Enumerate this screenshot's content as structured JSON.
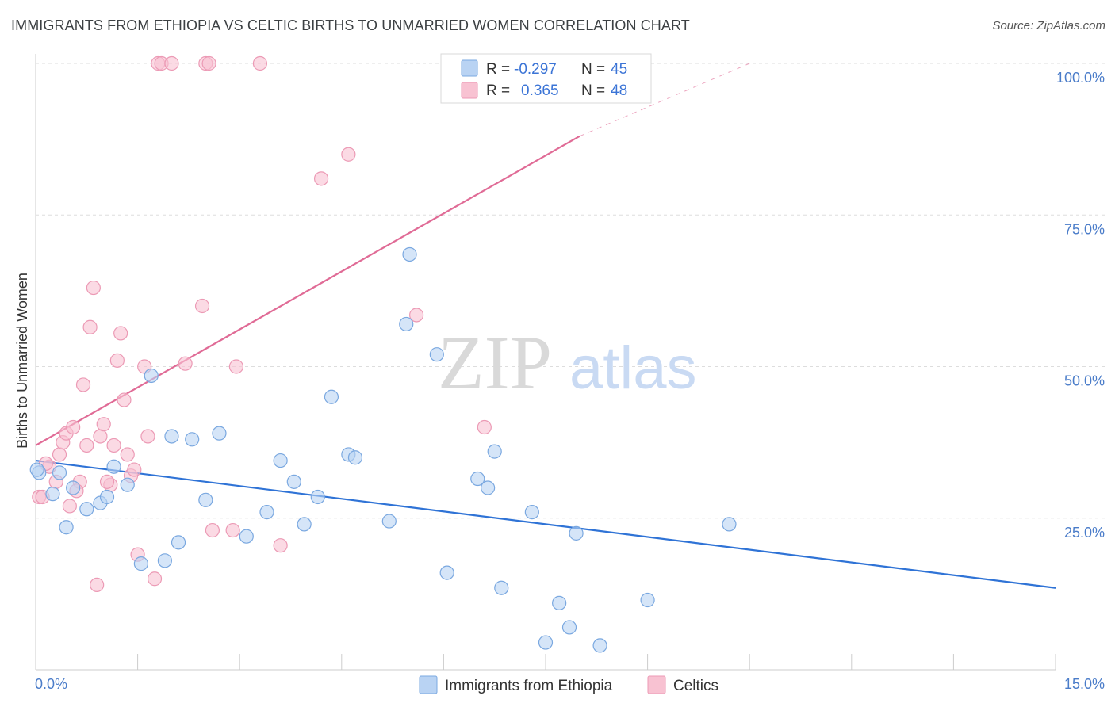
{
  "title": "IMMIGRANTS FROM ETHIOPIA VS CELTIC BIRTHS TO UNMARRIED WOMEN CORRELATION CHART",
  "source": "Source: ZipAtlas.com",
  "watermark": {
    "zip": "ZIP",
    "atlas": "atlas"
  },
  "legend": {
    "series1": {
      "r_label": "R =",
      "r_value": "-0.297",
      "n_label": "N =",
      "n_value": "45"
    },
    "series2": {
      "r_label": "R =",
      "r_value": "0.365",
      "n_label": "N =",
      "n_value": "48"
    }
  },
  "bottom_legend": {
    "series1": "Immigrants from Ethiopia",
    "series2": "Celtics"
  },
  "colors": {
    "series1_fill": "#b9d3f3",
    "series1_stroke": "#7aa8e0",
    "series1_line": "#2f73d6",
    "series2_fill": "#f8c2d2",
    "series2_stroke": "#ec9ab5",
    "series2_line": "#e06b96",
    "grid": "#dddddd",
    "tick_text": "#4a7cc9"
  },
  "chart_data": {
    "type": "scatter",
    "title": "IMMIGRANTS FROM ETHIOPIA VS CELTIC BIRTHS TO UNMARRIED WOMEN CORRELATION CHART",
    "xlabel": "",
    "ylabel": "Births to Unmarried Women",
    "xlim": [
      0,
      15
    ],
    "ylim": [
      0,
      100
    ],
    "x_tick_labels": [
      "0.0%",
      "15.0%"
    ],
    "y_tick_labels": [
      "100.0%",
      "75.0%",
      "50.0%",
      "25.0%"
    ],
    "y_ticks": [
      100,
      75,
      50,
      25
    ],
    "grid": true,
    "legend_position": "top-center",
    "series": [
      {
        "name": "Immigrants from Ethiopia",
        "r": -0.297,
        "n": 45,
        "trend": {
          "x": [
            0,
            15
          ],
          "y": [
            34.5,
            13.5
          ]
        },
        "points": [
          [
            0.05,
            32.5
          ],
          [
            0.25,
            29
          ],
          [
            0.35,
            32.5
          ],
          [
            0.45,
            23.5
          ],
          [
            0.55,
            30
          ],
          [
            0.75,
            26.5
          ],
          [
            0.95,
            27.5
          ],
          [
            1.05,
            28.5
          ],
          [
            1.15,
            33.5
          ],
          [
            1.35,
            30.5
          ],
          [
            1.55,
            17.5
          ],
          [
            1.7,
            48.5
          ],
          [
            2.0,
            38.5
          ],
          [
            2.1,
            21
          ],
          [
            2.3,
            38
          ],
          [
            2.5,
            28
          ],
          [
            2.7,
            39
          ],
          [
            3.1,
            22
          ],
          [
            3.4,
            26
          ],
          [
            3.6,
            34.5
          ],
          [
            3.8,
            31
          ],
          [
            3.95,
            24
          ],
          [
            4.15,
            28.5
          ],
          [
            4.35,
            45
          ],
          [
            4.6,
            35.5
          ],
          [
            4.7,
            35
          ],
          [
            5.2,
            24.5
          ],
          [
            5.45,
            57
          ],
          [
            5.5,
            68.5
          ],
          [
            5.9,
            52
          ],
          [
            6.05,
            16
          ],
          [
            6.5,
            31.5
          ],
          [
            6.65,
            30
          ],
          [
            6.75,
            36
          ],
          [
            6.85,
            13.5
          ],
          [
            7.3,
            26
          ],
          [
            7.5,
            4.5
          ],
          [
            7.7,
            11
          ],
          [
            7.85,
            7
          ],
          [
            7.95,
            22.5
          ],
          [
            8.3,
            4
          ],
          [
            9.0,
            11.5
          ],
          [
            10.2,
            24
          ],
          [
            0.02,
            33
          ],
          [
            1.9,
            18
          ]
        ]
      },
      {
        "name": "Celtics",
        "r": 0.365,
        "n": 48,
        "trend": {
          "x": [
            0,
            8
          ],
          "y": [
            37,
            88
          ]
        },
        "trend_dashed": {
          "x": [
            8,
            10.5
          ],
          "y": [
            88,
            100
          ]
        },
        "points": [
          [
            0.05,
            28.5
          ],
          [
            0.1,
            28.5
          ],
          [
            0.2,
            33.5
          ],
          [
            0.3,
            31
          ],
          [
            0.35,
            35.5
          ],
          [
            0.4,
            37.5
          ],
          [
            0.45,
            39
          ],
          [
            0.5,
            27
          ],
          [
            0.55,
            40
          ],
          [
            0.65,
            31
          ],
          [
            0.7,
            47
          ],
          [
            0.75,
            37
          ],
          [
            0.8,
            56.5
          ],
          [
            0.85,
            63
          ],
          [
            0.9,
            14
          ],
          [
            0.95,
            38.5
          ],
          [
            1.0,
            40.5
          ],
          [
            1.1,
            30.5
          ],
          [
            1.15,
            37
          ],
          [
            1.2,
            51
          ],
          [
            1.25,
            55.5
          ],
          [
            1.3,
            44.5
          ],
          [
            1.35,
            35.5
          ],
          [
            1.4,
            32
          ],
          [
            1.45,
            33
          ],
          [
            1.5,
            19
          ],
          [
            1.6,
            50
          ],
          [
            1.65,
            38.5
          ],
          [
            1.75,
            15
          ],
          [
            1.8,
            100
          ],
          [
            1.85,
            100
          ],
          [
            2.0,
            100
          ],
          [
            2.2,
            50.5
          ],
          [
            2.45,
            60
          ],
          [
            2.5,
            100
          ],
          [
            2.55,
            100
          ],
          [
            2.6,
            23
          ],
          [
            2.9,
            23
          ],
          [
            2.95,
            50
          ],
          [
            3.3,
            100
          ],
          [
            3.6,
            20.5
          ],
          [
            4.2,
            81
          ],
          [
            4.6,
            85
          ],
          [
            5.6,
            58.5
          ],
          [
            6.6,
            40
          ],
          [
            0.15,
            34
          ],
          [
            0.6,
            29.5
          ],
          [
            1.05,
            31
          ]
        ]
      }
    ]
  }
}
